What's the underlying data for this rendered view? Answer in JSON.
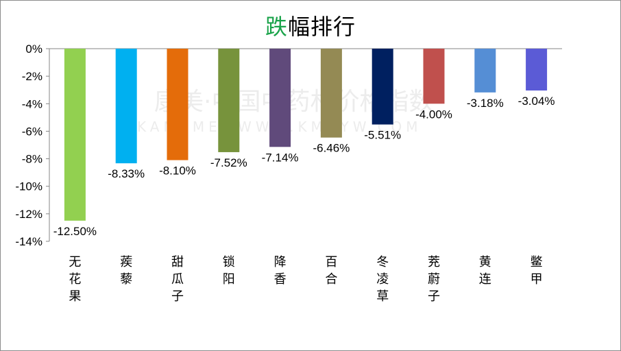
{
  "title": {
    "highlight": "跌",
    "rest": "幅排行",
    "highlight_color": "#1aa34a"
  },
  "watermark": {
    "line1": "康美·中国中药材价格指数",
    "line2": "KANGMEI  WWW.KMZYW.COM"
  },
  "chart_data": {
    "type": "bar",
    "title": "跌幅排行",
    "categories": [
      "无花果",
      "蒺藜",
      "甜瓜子",
      "锁阳",
      "降香",
      "百合",
      "冬凌草",
      "茺蔚子",
      "黄连",
      "鳖甲"
    ],
    "values": [
      -12.5,
      -8.33,
      -8.1,
      -7.52,
      -7.14,
      -6.46,
      -5.51,
      -4.0,
      -3.18,
      -3.04
    ],
    "data_labels": [
      "-12.50%",
      "-8.33%",
      "-8.10%",
      "-7.52%",
      "-7.14%",
      "-6.46%",
      "-5.51%",
      "-4.00%",
      "-3.18%",
      "-3.04%"
    ],
    "colors": [
      "#92d050",
      "#00b0f0",
      "#e46c0a",
      "#77933c",
      "#604a7b",
      "#948a54",
      "#002060",
      "#c0504d",
      "#558ed5",
      "#5b5bd6"
    ],
    "ylim": [
      -14,
      0
    ],
    "yticks": [
      "0%",
      "-2%",
      "-4%",
      "-6%",
      "-8%",
      "-10%",
      "-12%",
      "-14%"
    ],
    "xlabel": "",
    "ylabel": "",
    "grid": false
  }
}
